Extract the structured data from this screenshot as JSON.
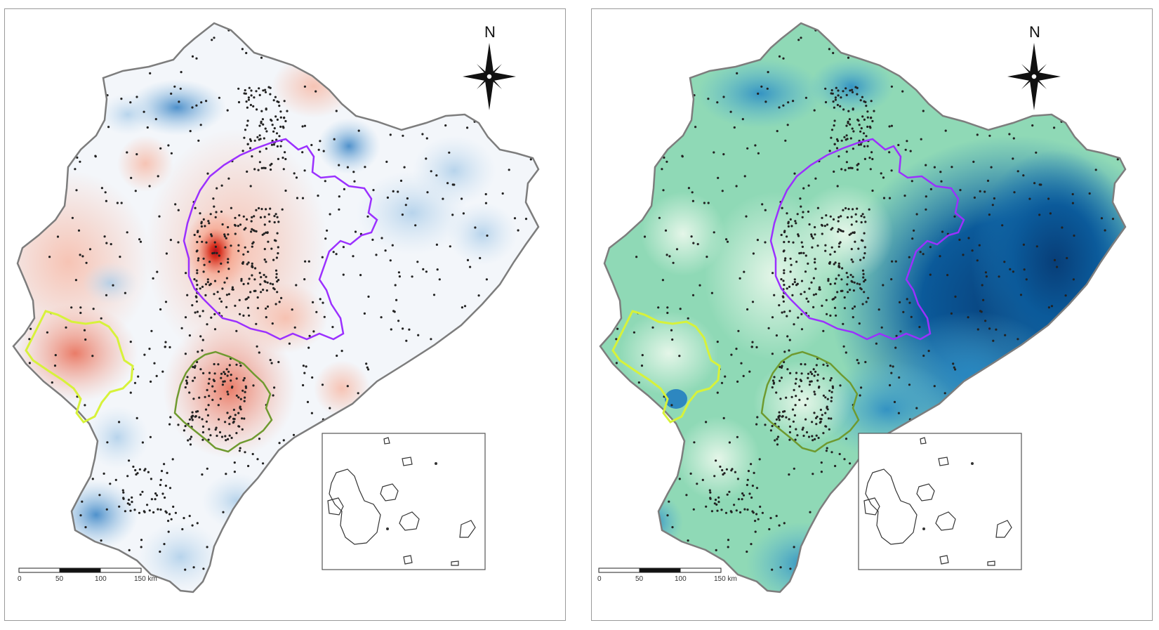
{
  "panels": [
    {
      "id": "left",
      "north_label": "N",
      "scale_labels": [
        "0",
        "50",
        "100",
        "150 km"
      ],
      "colors": {
        "positive": "#d7301f",
        "negative": "#4a90c9",
        "base": "#f4f7fa"
      }
    },
    {
      "id": "right",
      "north_label": "N",
      "scale_labels": [
        "0",
        "50",
        "100",
        "150 km"
      ],
      "colors": {
        "low": "#e9f7ea",
        "mid": "#7fd4b0",
        "high": "#0b4f8c"
      }
    }
  ],
  "region_outline_colors": {
    "country": "#7d7d7d",
    "central_region": "#9b30ff",
    "coastal_region": "#d7f23a",
    "southern_region": "#6f9a2f"
  },
  "icons": [
    "compass-rose-icon"
  ]
}
